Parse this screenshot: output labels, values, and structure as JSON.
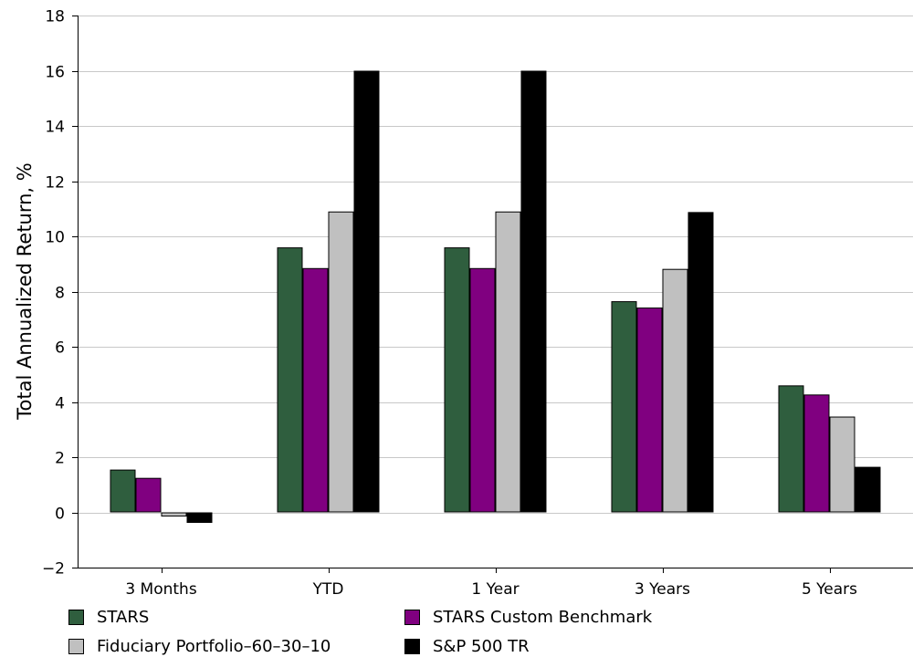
{
  "chart_data": {
    "type": "bar",
    "categories": [
      "3 Months",
      "YTD",
      "1 Year",
      "3 Years",
      "5 Years"
    ],
    "series": [
      {
        "name": "STARS",
        "color": "#2f5e3e",
        "values": [
          1.55,
          9.6,
          9.6,
          7.65,
          4.6
        ]
      },
      {
        "name": "STARS Custom Benchmark",
        "color": "#800080",
        "values": [
          1.25,
          8.85,
          8.85,
          7.42,
          4.27
        ]
      },
      {
        "name": "Fiduciary Portfolio–60–30–10",
        "color": "#c0c0c0",
        "values": [
          -0.15,
          10.9,
          10.9,
          8.82,
          3.47
        ]
      },
      {
        "name": "S&P 500 TR",
        "color": "#000000",
        "values": [
          -0.38,
          16.0,
          16.0,
          10.88,
          1.65
        ]
      }
    ],
    "title": "",
    "xlabel": "",
    "ylabel": "Total Annualized Return, %",
    "ylim": [
      -2,
      18
    ],
    "yticks": [
      -2,
      0,
      2,
      4,
      6,
      8,
      10,
      12,
      14,
      16,
      18
    ],
    "ytick_labels": [
      "−2",
      "0",
      "2",
      "4",
      "6",
      "8",
      "10",
      "12",
      "14",
      "16",
      "18"
    ],
    "grid": true,
    "legend_position": "bottom"
  }
}
